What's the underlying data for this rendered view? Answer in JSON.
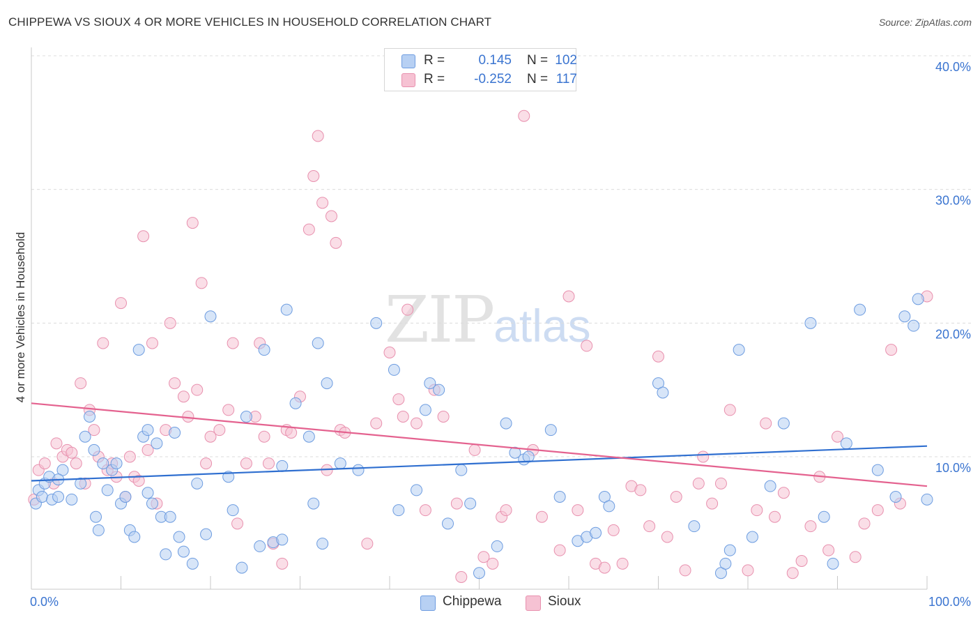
{
  "header": {
    "title": "CHIPPEWA VS SIOUX 4 OR MORE VEHICLES IN HOUSEHOLD CORRELATION CHART",
    "source": "Source: ZipAtlas.com"
  },
  "legend_top": {
    "rows": [
      {
        "r_label": "R =",
        "r_value": "0.145",
        "n_label": "N =",
        "n_value": "102"
      },
      {
        "r_label": "R =",
        "r_value": "-0.252",
        "n_label": "N =",
        "n_value": "117"
      }
    ]
  },
  "legend_bottom": {
    "chippewa": "Chippewa",
    "sioux": "Sioux"
  },
  "watermark": {
    "zip": "ZIP",
    "atlas": "atlas"
  },
  "colors": {
    "chippewa_fill": "#b7d0f3",
    "chippewa_stroke": "#6d9ce0",
    "chippewa_line": "#2f6fd0",
    "sioux_fill": "#f6c2d3",
    "sioux_stroke": "#e890ae",
    "sioux_line": "#e4628f",
    "axis_text": "#3a74d0"
  },
  "chart_data": {
    "type": "scatter",
    "title": "CHIPPEWA VS SIOUX 4 OR MORE VEHICLES IN HOUSEHOLD CORRELATION CHART",
    "xlabel": "",
    "ylabel": "4 or more Vehicles in Household",
    "xlim": [
      0,
      100
    ],
    "ylim": [
      0,
      40
    ],
    "x_tick_labels": [
      "0.0%",
      "100.0%"
    ],
    "y_ticks": [
      10,
      20,
      30,
      40
    ],
    "y_tick_labels": [
      "10.0%",
      "20.0%",
      "30.0%",
      "40.0%"
    ],
    "grid": true,
    "legend_position": "bottom",
    "series": [
      {
        "name": "Chippewa",
        "R": 0.145,
        "N": 102,
        "trend": {
          "x": [
            0,
            100
          ],
          "y": [
            8.2,
            10.8
          ]
        },
        "points": [
          [
            0.5,
            6.5
          ],
          [
            0.8,
            7.5
          ],
          [
            1.2,
            7.0
          ],
          [
            1.5,
            8.0
          ],
          [
            2.0,
            8.5
          ],
          [
            2.3,
            6.8
          ],
          [
            3.0,
            7.0
          ],
          [
            3.5,
            9.0
          ],
          [
            4.5,
            6.8
          ],
          [
            5.5,
            8.0
          ],
          [
            6.0,
            11.5
          ],
          [
            6.5,
            13.0
          ],
          [
            7.0,
            10.5
          ],
          [
            7.5,
            4.5
          ],
          [
            8.0,
            9.5
          ],
          [
            8.5,
            7.5
          ],
          [
            9.0,
            9.0
          ],
          [
            9.5,
            9.5
          ],
          [
            10.0,
            6.5
          ],
          [
            10.5,
            7.0
          ],
          [
            11.0,
            4.5
          ],
          [
            11.5,
            4.0
          ],
          [
            12.0,
            18.0
          ],
          [
            12.5,
            11.5
          ],
          [
            13.0,
            12.0
          ],
          [
            13.5,
            6.5
          ],
          [
            14.0,
            11.0
          ],
          [
            14.5,
            5.5
          ],
          [
            15.0,
            2.7
          ],
          [
            15.5,
            5.5
          ],
          [
            16.0,
            11.8
          ],
          [
            16.5,
            4.0
          ],
          [
            17.0,
            2.9
          ],
          [
            18.0,
            2.0
          ],
          [
            18.5,
            8.0
          ],
          [
            19.5,
            4.2
          ],
          [
            20.0,
            20.5
          ],
          [
            22.0,
            8.5
          ],
          [
            22.5,
            6.0
          ],
          [
            23.5,
            1.7
          ],
          [
            24.0,
            13.0
          ],
          [
            25.5,
            3.3
          ],
          [
            26.0,
            18.0
          ],
          [
            27.0,
            3.6
          ],
          [
            28.0,
            9.3
          ],
          [
            28.5,
            21.0
          ],
          [
            29.5,
            14.0
          ],
          [
            31.0,
            11.5
          ],
          [
            31.5,
            6.5
          ],
          [
            32.0,
            18.5
          ],
          [
            32.5,
            3.5
          ],
          [
            33.0,
            15.5
          ],
          [
            34.5,
            9.5
          ],
          [
            36.5,
            9.0
          ],
          [
            38.5,
            20.0
          ],
          [
            40.5,
            16.5
          ],
          [
            41.0,
            6.0
          ],
          [
            43.0,
            7.5
          ],
          [
            44.0,
            13.5
          ],
          [
            44.5,
            15.5
          ],
          [
            45.5,
            15.0
          ],
          [
            46.5,
            5.0
          ],
          [
            48.0,
            9.0
          ],
          [
            49.0,
            6.5
          ],
          [
            50.0,
            1.3
          ],
          [
            52.0,
            3.3
          ],
          [
            53.0,
            12.5
          ],
          [
            54.0,
            10.3
          ],
          [
            55.0,
            9.8
          ],
          [
            58.0,
            12.0
          ],
          [
            59.0,
            7.0
          ],
          [
            61.0,
            3.7
          ],
          [
            62.0,
            4.0
          ],
          [
            63.0,
            4.3
          ],
          [
            64.0,
            7.0
          ],
          [
            64.5,
            6.3
          ],
          [
            70.0,
            15.5
          ],
          [
            70.5,
            14.8
          ],
          [
            74.0,
            4.8
          ],
          [
            77.0,
            1.3
          ],
          [
            77.5,
            2.0
          ],
          [
            78.0,
            3.0
          ],
          [
            79.0,
            18.0
          ],
          [
            80.5,
            4.0
          ],
          [
            82.5,
            7.8
          ],
          [
            84.0,
            12.5
          ],
          [
            87.0,
            20.0
          ],
          [
            88.5,
            5.5
          ],
          [
            89.5,
            2.0
          ],
          [
            91.0,
            11.0
          ],
          [
            92.5,
            21.0
          ],
          [
            94.5,
            9.0
          ],
          [
            96.5,
            7.0
          ],
          [
            97.5,
            20.5
          ],
          [
            98.5,
            19.8
          ],
          [
            99.0,
            21.8
          ],
          [
            100.0,
            6.8
          ],
          [
            55.5,
            10.0
          ],
          [
            13.0,
            7.3
          ],
          [
            3.0,
            8.3
          ],
          [
            7.2,
            5.5
          ],
          [
            28.0,
            3.8
          ]
        ]
      },
      {
        "name": "Sioux",
        "R": -0.252,
        "N": 117,
        "trend": {
          "x": [
            0,
            100
          ],
          "y": [
            14.0,
            7.8
          ]
        },
        "points": [
          [
            0.3,
            6.8
          ],
          [
            0.8,
            9.0
          ],
          [
            1.5,
            9.5
          ],
          [
            2.5,
            8.0
          ],
          [
            2.8,
            11.0
          ],
          [
            3.5,
            10.0
          ],
          [
            4.0,
            10.5
          ],
          [
            4.5,
            10.3
          ],
          [
            5.0,
            9.5
          ],
          [
            5.5,
            15.5
          ],
          [
            6.0,
            8.0
          ],
          [
            6.5,
            13.5
          ],
          [
            7.0,
            12.0
          ],
          [
            7.5,
            10.0
          ],
          [
            8.0,
            18.5
          ],
          [
            8.5,
            9.0
          ],
          [
            9.0,
            9.5
          ],
          [
            9.5,
            8.5
          ],
          [
            10.0,
            21.5
          ],
          [
            10.5,
            7.0
          ],
          [
            11.0,
            10.0
          ],
          [
            11.5,
            8.5
          ],
          [
            12.0,
            8.2
          ],
          [
            12.5,
            26.5
          ],
          [
            13.0,
            10.5
          ],
          [
            13.5,
            18.5
          ],
          [
            14.0,
            6.5
          ],
          [
            15.0,
            12.0
          ],
          [
            15.5,
            20.0
          ],
          [
            16.0,
            15.5
          ],
          [
            17.0,
            14.5
          ],
          [
            17.5,
            13.0
          ],
          [
            18.0,
            27.5
          ],
          [
            18.5,
            15.0
          ],
          [
            19.0,
            23.0
          ],
          [
            19.5,
            9.5
          ],
          [
            20.0,
            11.5
          ],
          [
            21.0,
            12.0
          ],
          [
            22.0,
            13.5
          ],
          [
            22.5,
            18.5
          ],
          [
            23.0,
            5.0
          ],
          [
            24.0,
            9.5
          ],
          [
            25.0,
            13.0
          ],
          [
            25.5,
            18.5
          ],
          [
            26.0,
            11.5
          ],
          [
            26.5,
            9.5
          ],
          [
            27.0,
            3.5
          ],
          [
            28.0,
            2.0
          ],
          [
            28.5,
            12.0
          ],
          [
            29.0,
            11.8
          ],
          [
            30.0,
            14.5
          ],
          [
            31.0,
            27.0
          ],
          [
            31.5,
            31.0
          ],
          [
            32.0,
            34.0
          ],
          [
            32.5,
            29.0
          ],
          [
            33.0,
            9.0
          ],
          [
            33.5,
            28.0
          ],
          [
            34.0,
            26.0
          ],
          [
            34.5,
            12.0
          ],
          [
            35.0,
            11.8
          ],
          [
            37.5,
            3.5
          ],
          [
            38.5,
            12.5
          ],
          [
            40.0,
            17.8
          ],
          [
            41.0,
            14.3
          ],
          [
            41.5,
            13.0
          ],
          [
            42.0,
            21.0
          ],
          [
            43.0,
            12.5
          ],
          [
            44.0,
            6.0
          ],
          [
            45.0,
            15.0
          ],
          [
            46.0,
            13.0
          ],
          [
            47.5,
            6.5
          ],
          [
            48.0,
            1.0
          ],
          [
            49.5,
            10.5
          ],
          [
            50.5,
            2.5
          ],
          [
            51.5,
            2.0
          ],
          [
            52.5,
            5.5
          ],
          [
            53.0,
            6.0
          ],
          [
            55.0,
            35.5
          ],
          [
            56.0,
            10.5
          ],
          [
            57.0,
            5.5
          ],
          [
            59.0,
            3.0
          ],
          [
            60.0,
            22.0
          ],
          [
            61.0,
            6.0
          ],
          [
            62.0,
            18.3
          ],
          [
            63.0,
            2.0
          ],
          [
            64.0,
            1.7
          ],
          [
            65.0,
            4.5
          ],
          [
            66.0,
            2.0
          ],
          [
            67.0,
            7.8
          ],
          [
            68.0,
            7.5
          ],
          [
            69.0,
            4.8
          ],
          [
            70.0,
            17.5
          ],
          [
            71.0,
            4.0
          ],
          [
            72.0,
            7.0
          ],
          [
            73.0,
            1.5
          ],
          [
            74.5,
            8.0
          ],
          [
            75.0,
            10.0
          ],
          [
            76.0,
            6.5
          ],
          [
            77.0,
            8.0
          ],
          [
            78.0,
            13.5
          ],
          [
            80.0,
            1.5
          ],
          [
            81.0,
            6.0
          ],
          [
            82.0,
            12.5
          ],
          [
            83.0,
            5.5
          ],
          [
            84.0,
            7.3
          ],
          [
            85.0,
            1.3
          ],
          [
            86.0,
            2.2
          ],
          [
            87.0,
            4.8
          ],
          [
            88.0,
            8.5
          ],
          [
            89.0,
            3.0
          ],
          [
            90.0,
            11.5
          ],
          [
            92.0,
            2.5
          ],
          [
            93.0,
            5.0
          ],
          [
            94.5,
            6.0
          ],
          [
            96.0,
            18.0
          ],
          [
            97.0,
            6.5
          ],
          [
            100.0,
            22.0
          ]
        ]
      }
    ]
  }
}
